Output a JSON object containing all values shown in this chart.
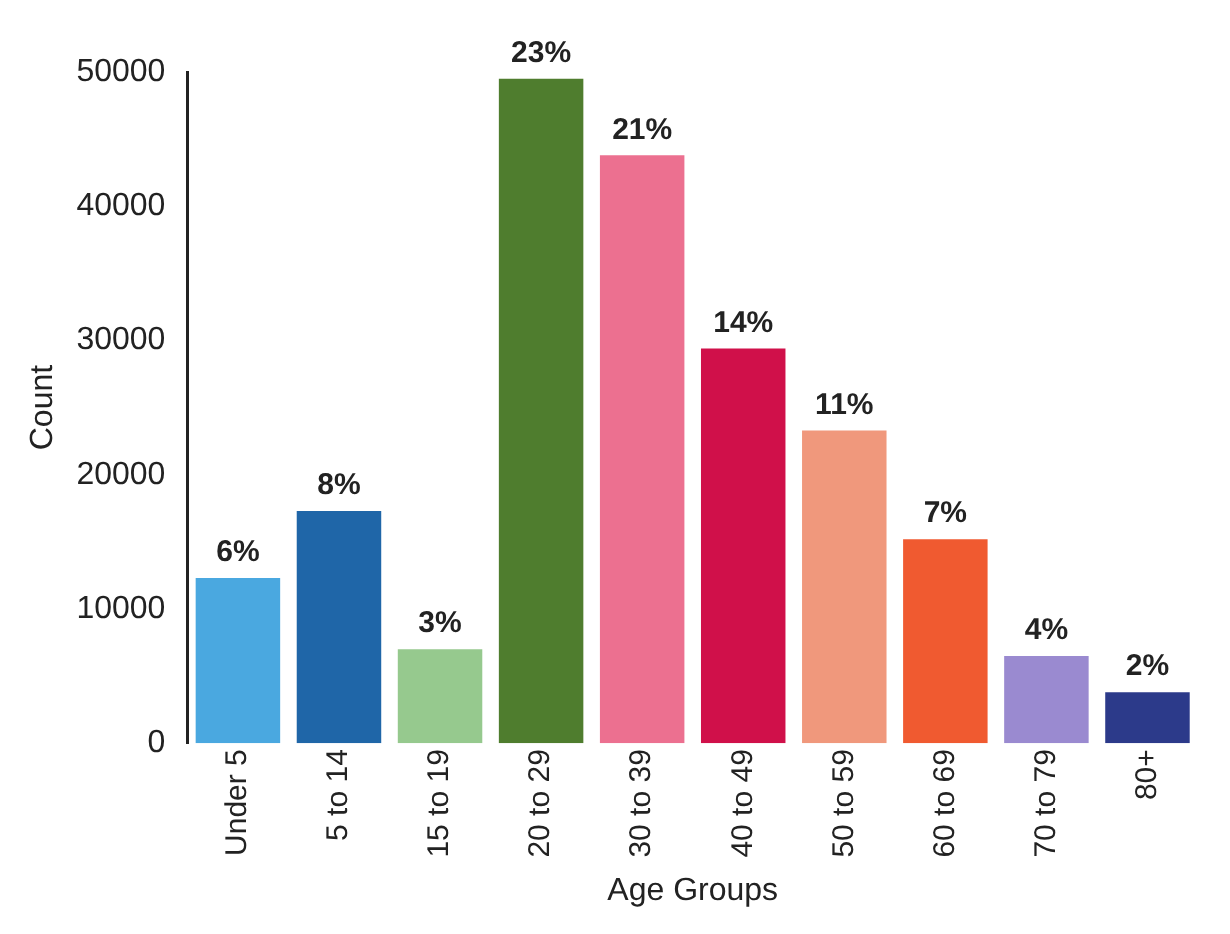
{
  "chart_data": {
    "type": "bar",
    "xlabel": "Age Groups",
    "ylabel": "Count",
    "categories": [
      "Under 5",
      "5 to 14",
      "15 to 19",
      "20 to 29",
      "30 to 39",
      "40 to 49",
      "50 to 59",
      "60 to 69",
      "70 to 79",
      "80+"
    ],
    "values": [
      12300,
      17300,
      7000,
      49500,
      43800,
      29400,
      23300,
      15200,
      6500,
      3800
    ],
    "colors": [
      "#4aa8e0",
      "#1f66a8",
      "#96c98e",
      "#4f7d2e",
      "#ec7090",
      "#d0104a",
      "#f0987c",
      "#f05a30",
      "#9a8ad0",
      "#2c3a8a"
    ],
    "annotations": [
      {
        "text": "6%",
        "x": "Under 5",
        "y": 12300
      },
      {
        "text": "8%",
        "x": "5 to 14",
        "y": 17300
      },
      {
        "text": "3%",
        "x": "15 to 19",
        "y": 7000
      },
      {
        "text": "23%",
        "x": "20 to 29",
        "y": 49500
      },
      {
        "text": "21%",
        "x": "30 to 39",
        "y": 43800
      },
      {
        "text": "14%",
        "x": "40 to 49",
        "y": 29400
      },
      {
        "text": "11%",
        "x": "50 to 59",
        "y": 23300
      },
      {
        "text": "7%",
        "x": "60 to 69",
        "y": 15200
      },
      {
        "text": "4%",
        "x": "70 to 79",
        "y": 6500
      },
      {
        "text": "2%",
        "x": "80+",
        "y": 3800
      }
    ],
    "ylim": [
      0,
      50000
    ],
    "yticks": [
      0,
      10000,
      20000,
      30000,
      40000,
      50000
    ],
    "grid": false,
    "legend": false
  }
}
